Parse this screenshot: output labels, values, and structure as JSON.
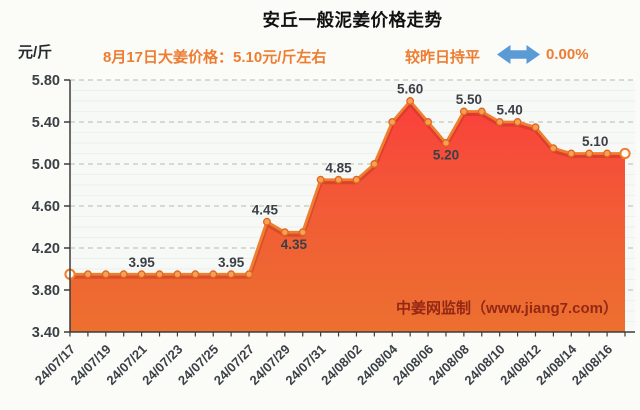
{
  "title": "安丘一般泥姜价格走势",
  "header": {
    "unit_label": "元/斤",
    "price_note": "8月17日大姜价格：5.10元/斤左右",
    "trend_label": "较昨日持平",
    "trend_value": "0.00%",
    "trend_arrow_icon": "left-right-arrow",
    "accent_color": "#ED7D31",
    "arrow_color": "#5B9BD5"
  },
  "watermark": {
    "text": "中姜网监制（www.jiang7.com）",
    "color": "#8A2113"
  },
  "chart_data": {
    "type": "area",
    "title": "安丘一般泥姜价格走势",
    "ylabel": "元/斤",
    "ylim": [
      3.4,
      5.8
    ],
    "y_ticks": [
      3.4,
      3.8,
      4.2,
      4.6,
      5.0,
      5.4,
      5.8
    ],
    "y_tick_labels": [
      "3.40",
      "3.80",
      "4.20",
      "4.60",
      "5.00",
      "5.40",
      "5.80"
    ],
    "grid": "dashed-horizontal",
    "legend": "none",
    "x": [
      "24/07/17",
      "24/07/18",
      "24/07/19",
      "24/07/20",
      "24/07/21",
      "24/07/22",
      "24/07/23",
      "24/07/24",
      "24/07/25",
      "24/07/26",
      "24/07/27",
      "24/07/28",
      "24/07/29",
      "24/07/30",
      "24/07/31",
      "24/08/01",
      "24/08/02",
      "24/08/03",
      "24/08/04",
      "24/08/05",
      "24/08/06",
      "24/08/07",
      "24/08/08",
      "24/08/09",
      "24/08/10",
      "24/08/11",
      "24/08/12",
      "24/08/13",
      "24/08/14",
      "24/08/15",
      "24/08/16",
      "24/08/17"
    ],
    "values": [
      3.95,
      3.95,
      3.95,
      3.95,
      3.95,
      3.95,
      3.95,
      3.95,
      3.95,
      3.95,
      3.95,
      4.45,
      4.35,
      4.35,
      4.85,
      4.85,
      4.85,
      5.0,
      5.4,
      5.6,
      5.4,
      5.2,
      5.5,
      5.5,
      5.4,
      5.4,
      5.35,
      5.15,
      5.1,
      5.1,
      5.1,
      5.1
    ],
    "x_tick_labels": [
      "24/07/17",
      "24/07/19",
      "24/07/21",
      "24/07/23",
      "24/07/25",
      "24/07/27",
      "24/07/29",
      "24/07/31",
      "24/08/02",
      "24/08/04",
      "24/08/06",
      "24/08/08",
      "24/08/10",
      "24/08/12",
      "24/08/14",
      "24/08/16"
    ],
    "x_tick_every": 2,
    "point_labels": [
      {
        "i": 4,
        "text": "3.95",
        "pos": "above",
        "dx": 0
      },
      {
        "i": 9,
        "text": "3.95",
        "pos": "above",
        "dx": 0
      },
      {
        "i": 11,
        "text": "4.45",
        "pos": "above",
        "dx": -2
      },
      {
        "i": 12,
        "text": "4.35",
        "pos": "below",
        "dx": 9
      },
      {
        "i": 15,
        "text": "4.85",
        "pos": "above",
        "dx": 0
      },
      {
        "i": 19,
        "text": "5.60",
        "pos": "above",
        "dx": 0
      },
      {
        "i": 21,
        "text": "5.20",
        "pos": "below",
        "dx": 0
      },
      {
        "i": 22,
        "text": "5.50",
        "pos": "above",
        "dx": 5
      },
      {
        "i": 24,
        "text": "5.40",
        "pos": "above",
        "dx": 10
      },
      {
        "i": 29,
        "text": "5.10",
        "pos": "above",
        "dx": 6
      }
    ],
    "style": {
      "line_color": "#EF7E31",
      "line_shadow_color": "rgba(178,44,22,0.38)",
      "marker_fill": "#F7A058",
      "marker_stroke": "#E0661F",
      "endpoint_fill": "#FFFDF9",
      "area_top_color": "#FA3E3D",
      "area_mid_color": "#F25A36",
      "area_bottom_color": "#EC7030",
      "grid_color": "#BFC9BF",
      "minor_grid_color": "#EDF0EC",
      "axis_color": "#3C3C3C",
      "tick_label_color": "#3B4046",
      "data_label_color": "#3B4046",
      "plot_bg": "#F7F9F6"
    }
  }
}
